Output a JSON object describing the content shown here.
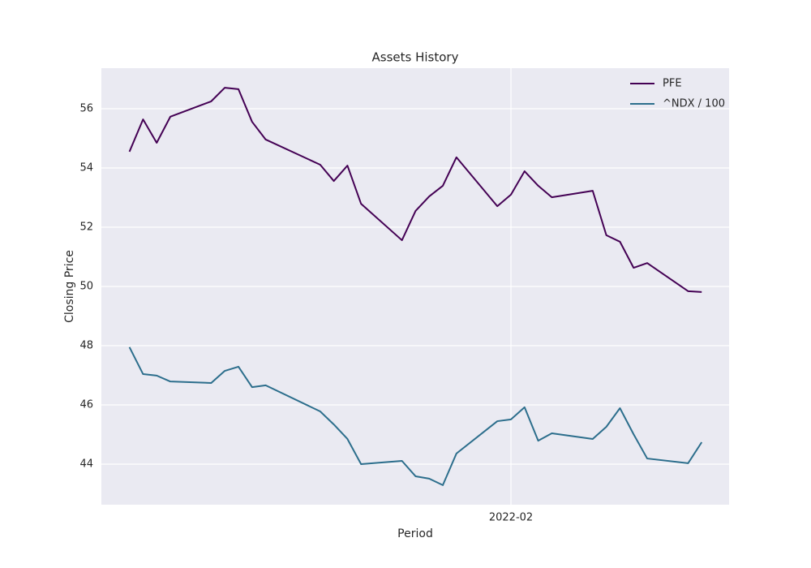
{
  "chart_data": {
    "type": "line",
    "title": "Assets History",
    "xlabel": "Period",
    "ylabel": "Closing Price",
    "x": [
      18996,
      18997,
      18998,
      18999,
      19002,
      19003,
      19004,
      19005,
      19006,
      19010,
      19011,
      19012,
      19013,
      19016,
      19017,
      19018,
      19019,
      19020,
      19023,
      19024,
      19025,
      19026,
      19027,
      19030,
      19031,
      19032,
      19033,
      19034,
      19037,
      19038
    ],
    "series": [
      {
        "name": "PFE",
        "color": "#440154",
        "values": [
          54.55,
          55.64,
          54.85,
          55.73,
          56.25,
          56.71,
          56.66,
          55.56,
          54.96,
          54.11,
          53.56,
          54.08,
          52.79,
          51.56,
          52.55,
          53.04,
          53.4,
          54.36,
          52.71,
          53.1,
          53.89,
          53.4,
          53.01,
          53.23,
          51.73,
          51.51,
          50.63,
          50.79,
          49.84,
          49.81
        ]
      },
      {
        "name": "^NDX / 100",
        "color": "#2c6e8c",
        "values": [
          47.95,
          47.04,
          46.99,
          46.79,
          46.74,
          47.15,
          47.29,
          46.6,
          46.66,
          45.78,
          45.34,
          44.85,
          44.0,
          44.11,
          43.59,
          43.51,
          43.29,
          44.36,
          45.45,
          45.51,
          45.92,
          44.79,
          45.04,
          44.85,
          45.26,
          45.89,
          45.01,
          44.19,
          44.03,
          44.74
        ]
      }
    ],
    "xlim": [
      18993.94,
      19040.01
    ],
    "xticks": [
      {
        "value": 19024,
        "label": "2022-02"
      }
    ],
    "ylim": [
      42.63,
      57.37
    ],
    "yticks": [
      44,
      46,
      48,
      50,
      52,
      54,
      56
    ],
    "grid": true,
    "legend": "upper right"
  }
}
